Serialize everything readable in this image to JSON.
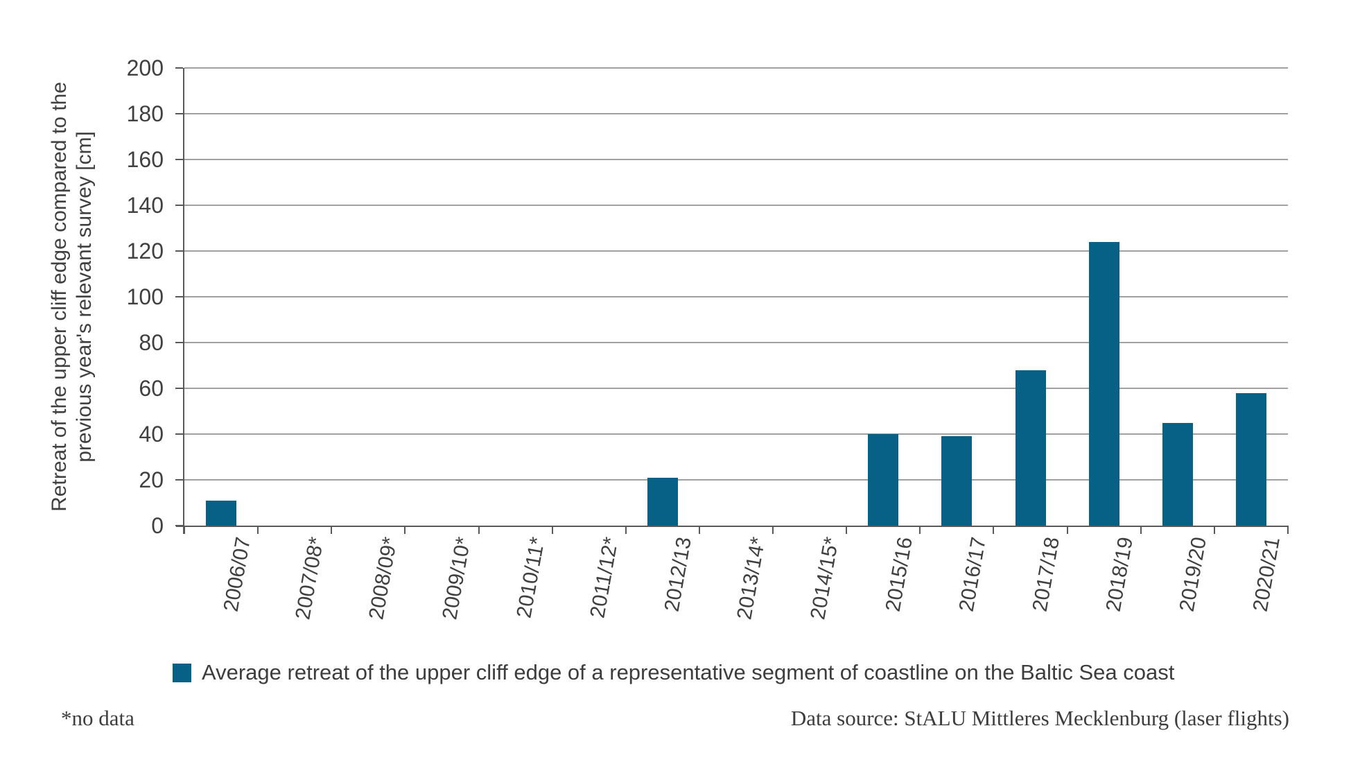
{
  "chart_data": {
    "type": "bar",
    "title": "",
    "categories": [
      "2006/07",
      "2007/08*",
      "2008/09*",
      "2009/10*",
      "2010/11*",
      "2011/12*",
      "2012/13",
      "2013/14*",
      "2014/15*",
      "2015/16",
      "2016/17",
      "2017/18",
      "2018/19",
      "2019/20",
      "2020/21"
    ],
    "values": [
      11,
      null,
      null,
      null,
      null,
      null,
      21,
      null,
      null,
      40,
      39,
      68,
      124,
      45,
      58
    ],
    "xlabel": "",
    "ylabel": "Retreat of the upper cliff edge compared to the previous year's relevant survey [cm]",
    "ylabel_lines": [
      "Retreat of the upper cliff edge compared to the",
      "previous year's relevant survey [cm]"
    ],
    "ylim": [
      0,
      200
    ],
    "yticks": [
      0,
      20,
      40,
      60,
      80,
      100,
      120,
      140,
      160,
      180,
      200
    ],
    "grid": "horizontal",
    "legend_position": "bottom-left",
    "legend": [
      {
        "label": "Average retreat of the upper cliff edge of a representative segment of coastline on the Baltic Sea coast",
        "color": "#076187"
      }
    ],
    "bar_color": "#076187"
  },
  "colors": {
    "bar": "#076187",
    "gridline": "#a0a0a0",
    "axis": "#595959",
    "text": "#404040"
  },
  "footer": {
    "footnote": "*no data",
    "source": "Data source: StALU Mittleres Mecklenburg (laser flights)"
  }
}
